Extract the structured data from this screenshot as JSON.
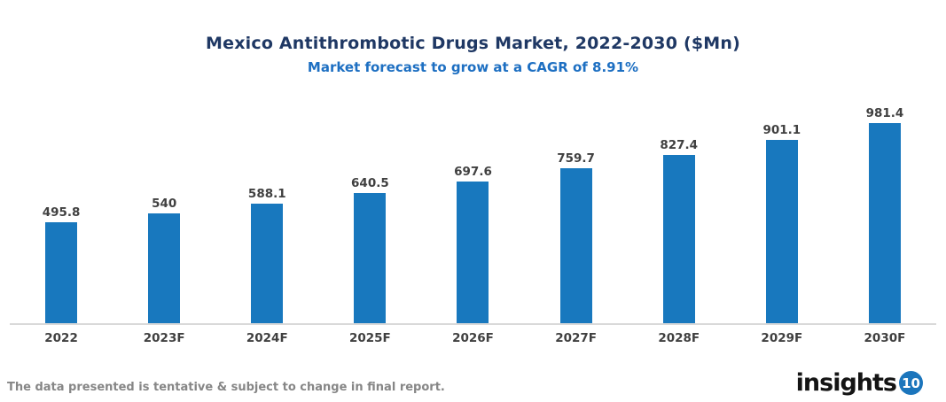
{
  "header": {
    "title": "Mexico Antithrombotic Drugs Market, 2022-2030 ($Mn)",
    "subtitle": "Market forecast to grow at a CAGR of 8.91%"
  },
  "chart_data": {
    "type": "bar",
    "title": "Mexico Antithrombotic Drugs Market, 2022-2030 ($Mn)",
    "subtitle": "Market forecast to grow at a CAGR of 8.91%",
    "categories": [
      "2022",
      "2023F",
      "2024F",
      "2025F",
      "2026F",
      "2027F",
      "2028F",
      "2029F",
      "2030F"
    ],
    "values": [
      495.8,
      540,
      588.1,
      640.5,
      697.6,
      759.7,
      827.4,
      901.1,
      981.4
    ],
    "xlabel": "",
    "ylabel": "",
    "ylim": [
      0,
      1000
    ],
    "y_axis_visible": false,
    "grid": false,
    "legend": false,
    "bar_color": "#1878BE",
    "value_label_color": "#404040",
    "axis_label_color": "#404040",
    "baseline_color": "#D9D9D9"
  },
  "footer": {
    "disclaimer": "The data presented is tentative & subject to change in final report.",
    "logo": {
      "text": "insights",
      "badge": "10",
      "badge_color": "#1B75BC"
    }
  },
  "colors": {
    "title": "#1F3864",
    "subtitle": "#1D6FC2",
    "disclaimer": "#868686",
    "background": "#FFFFFF"
  }
}
